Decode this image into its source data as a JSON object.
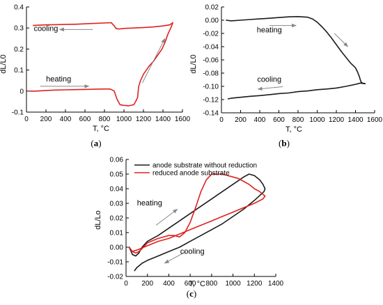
{
  "chart_data": [
    {
      "type": "line",
      "panel_label": "(a)",
      "xlabel": "T, °C",
      "ylabel": "dL/L0",
      "xlim": [
        0,
        1600
      ],
      "ylim": [
        -0.1,
        0.4
      ],
      "xticks": [
        0,
        200,
        400,
        600,
        800,
        1000,
        1200,
        1400,
        1600
      ],
      "yticks": [
        -0.1,
        0.0,
        0.1,
        0.2,
        0.3,
        0.4
      ],
      "grid": false,
      "series": [
        {
          "color": "#e02020",
          "x": [
            30,
            100,
            200,
            300,
            400,
            500,
            600,
            700,
            800,
            850,
            870,
            900,
            930,
            960,
            1000,
            1050,
            1100,
            1120,
            1140,
            1150,
            1170,
            1200,
            1230,
            1260,
            1300,
            1330,
            1360,
            1390,
            1420,
            1450,
            1470,
            1490,
            1500
          ],
          "y": [
            0.0,
            0.0,
            0.003,
            0.005,
            0.006,
            0.007,
            0.008,
            0.009,
            0.01,
            0.01,
            0.008,
            0.0,
            -0.04,
            -0.065,
            -0.068,
            -0.07,
            -0.065,
            -0.05,
            -0.03,
            0.02,
            0.05,
            0.08,
            0.1,
            0.12,
            0.14,
            0.16,
            0.18,
            0.2,
            0.23,
            0.27,
            0.29,
            0.31,
            0.325
          ]
        },
        {
          "color": "#e02020",
          "x": [
            1500,
            1470,
            1400,
            1300,
            1200,
            1100,
            1000,
            950,
            920,
            900,
            870,
            800,
            700,
            600,
            500,
            400,
            300,
            200,
            100,
            70
          ],
          "y": [
            0.325,
            0.315,
            0.31,
            0.305,
            0.302,
            0.3,
            0.298,
            0.295,
            0.297,
            0.31,
            0.325,
            0.324,
            0.322,
            0.32,
            0.318,
            0.317,
            0.316,
            0.315,
            0.313,
            0.312
          ]
        }
      ],
      "annotations": [
        {
          "text": "cooling",
          "x": 200,
          "y": 0.285
        },
        {
          "text": "heating",
          "x": 330,
          "y": 0.045
        }
      ],
      "arrows": [
        {
          "from": [
            680,
            0.293
          ],
          "to": [
            340,
            0.293
          ]
        },
        {
          "from": [
            140,
            0.023
          ],
          "to": [
            640,
            0.023
          ]
        },
        {
          "from": [
            1190,
            0.04
          ],
          "to": [
            1420,
            0.25
          ]
        }
      ]
    },
    {
      "type": "line",
      "panel_label": "(b)",
      "xlabel": "T, °C",
      "ylabel": "dL/L0",
      "xlim": [
        0,
        1600
      ],
      "ylim": [
        -0.14,
        0.02
      ],
      "xticks": [
        0,
        200,
        400,
        600,
        800,
        1000,
        1200,
        1400,
        1600
      ],
      "yticks": [
        -0.14,
        -0.12,
        -0.1,
        -0.08,
        -0.06,
        -0.04,
        -0.02,
        0.0,
        0.02
      ],
      "ytick_labels": [
        "-0.14",
        "-0.12",
        "-0.10",
        "-0.08",
        "-0.06",
        "-0.04",
        "-0.02",
        "0.00",
        "0.02"
      ],
      "grid": false,
      "series": [
        {
          "color": "#1a1a1a",
          "x": [
            50,
            100,
            200,
            300,
            400,
            500,
            600,
            700,
            800,
            900,
            950,
            1000,
            1050,
            1100,
            1150,
            1200,
            1250,
            1300,
            1350,
            1400,
            1420,
            1440,
            1450,
            1460,
            1480,
            1500
          ],
          "y": [
            0.0,
            -0.001,
            0.0,
            0.001,
            0.002,
            0.003,
            0.004,
            0.005,
            0.0055,
            0.0045,
            0.002,
            -0.003,
            -0.01,
            -0.018,
            -0.027,
            -0.037,
            -0.047,
            -0.056,
            -0.065,
            -0.072,
            -0.078,
            -0.085,
            -0.09,
            -0.094,
            -0.0955,
            -0.096
          ]
        },
        {
          "color": "#1a1a1a",
          "x": [
            1500,
            1450,
            1400,
            1300,
            1200,
            1100,
            1000,
            900,
            800,
            700,
            600,
            500,
            400,
            300,
            200,
            100,
            70
          ],
          "y": [
            -0.096,
            -0.095,
            -0.097,
            -0.1,
            -0.1025,
            -0.104,
            -0.105,
            -0.107,
            -0.108,
            -0.11,
            -0.111,
            -0.1125,
            -0.114,
            -0.115,
            -0.1165,
            -0.118,
            -0.119
          ]
        }
      ],
      "annotations": [
        {
          "text": "heating",
          "x": 500,
          "y": -0.0185
        },
        {
          "text": "cooling",
          "x": 500,
          "y": -0.093
        }
      ],
      "arrows": [
        {
          "from": [
            500,
            -0.008
          ],
          "to": [
            780,
            -0.008
          ]
        },
        {
          "from": [
            1180,
            -0.02
          ],
          "to": [
            1320,
            -0.04
          ]
        },
        {
          "from": [
            640,
            -0.1005
          ],
          "to": [
            380,
            -0.1042
          ]
        }
      ]
    },
    {
      "type": "line",
      "panel_label": "(c)",
      "xlabel": "T, °C",
      "ylabel": "dL/Lo",
      "xlim": [
        0,
        1400
      ],
      "ylim": [
        -0.02,
        0.06
      ],
      "xticks": [
        0,
        200,
        400,
        600,
        800,
        1000,
        1200,
        1400
      ],
      "yticks": [
        -0.02,
        -0.01,
        0.0,
        0.01,
        0.02,
        0.03,
        0.04,
        0.05,
        0.06
      ],
      "ytick_labels": [
        "-0.02",
        "-0.01",
        "0.00",
        "0.01",
        "0.02",
        "0.03",
        "0.04",
        "0.05",
        "0.06"
      ],
      "grid": false,
      "legend": {
        "position": "top-left"
      },
      "series": [
        {
          "name": "anode substrate without reduction",
          "color": "#1a1a1a",
          "x": [
            30,
            60,
            90,
            120,
            150,
            200,
            300,
            400,
            500,
            600,
            700,
            800,
            900,
            1000,
            1100,
            1150,
            1200,
            1250,
            1280,
            1300,
            1290,
            1200,
            1100,
            1000,
            900,
            800,
            700,
            600,
            500,
            400,
            300,
            200,
            150,
            100,
            80
          ],
          "y": [
            0.0,
            -0.005,
            -0.006,
            -0.004,
            0.0,
            0.004,
            0.008,
            0.013,
            0.018,
            0.023,
            0.028,
            0.033,
            0.038,
            0.043,
            0.048,
            0.05,
            0.049,
            0.046,
            0.043,
            0.04,
            0.038,
            0.032,
            0.026,
            0.021,
            0.016,
            0.012,
            0.008,
            0.004,
            0.0,
            -0.003,
            -0.006,
            -0.009,
            -0.011,
            -0.014,
            -0.016
          ]
        },
        {
          "name": "reduced anode substrate",
          "color": "#e02020",
          "x": [
            30,
            60,
            90,
            120,
            150,
            200,
            300,
            400,
            450,
            500,
            550,
            600,
            650,
            700,
            750,
            800,
            850,
            900,
            950,
            1000,
            1050,
            1100,
            1150,
            1200,
            1250,
            1300,
            1280,
            1200,
            1100,
            1000,
            900,
            800,
            700,
            600,
            500,
            400,
            300,
            200,
            100,
            50
          ],
          "y": [
            0.0,
            -0.003,
            -0.004,
            -0.003,
            -0.001,
            0.003,
            0.006,
            0.008,
            0.008,
            0.007,
            0.01,
            0.017,
            0.027,
            0.038,
            0.046,
            0.05,
            0.05,
            0.05,
            0.049,
            0.048,
            0.047,
            0.045,
            0.043,
            0.04,
            0.038,
            0.035,
            0.033,
            0.03,
            0.027,
            0.024,
            0.021,
            0.018,
            0.015,
            0.012,
            0.009,
            0.006,
            0.004,
            0.001,
            -0.002,
            -0.003
          ]
        }
      ],
      "annotations": [
        {
          "text": "heating",
          "x": 220,
          "y": 0.0285
        },
        {
          "text": "cooling",
          "x": 620,
          "y": -0.0045
        }
      ],
      "arrows": [
        {
          "from": [
            280,
            0.015
          ],
          "to": [
            480,
            0.026
          ]
        },
        {
          "from": [
            560,
            -0.003
          ],
          "to": [
            360,
            -0.011
          ]
        }
      ]
    }
  ]
}
